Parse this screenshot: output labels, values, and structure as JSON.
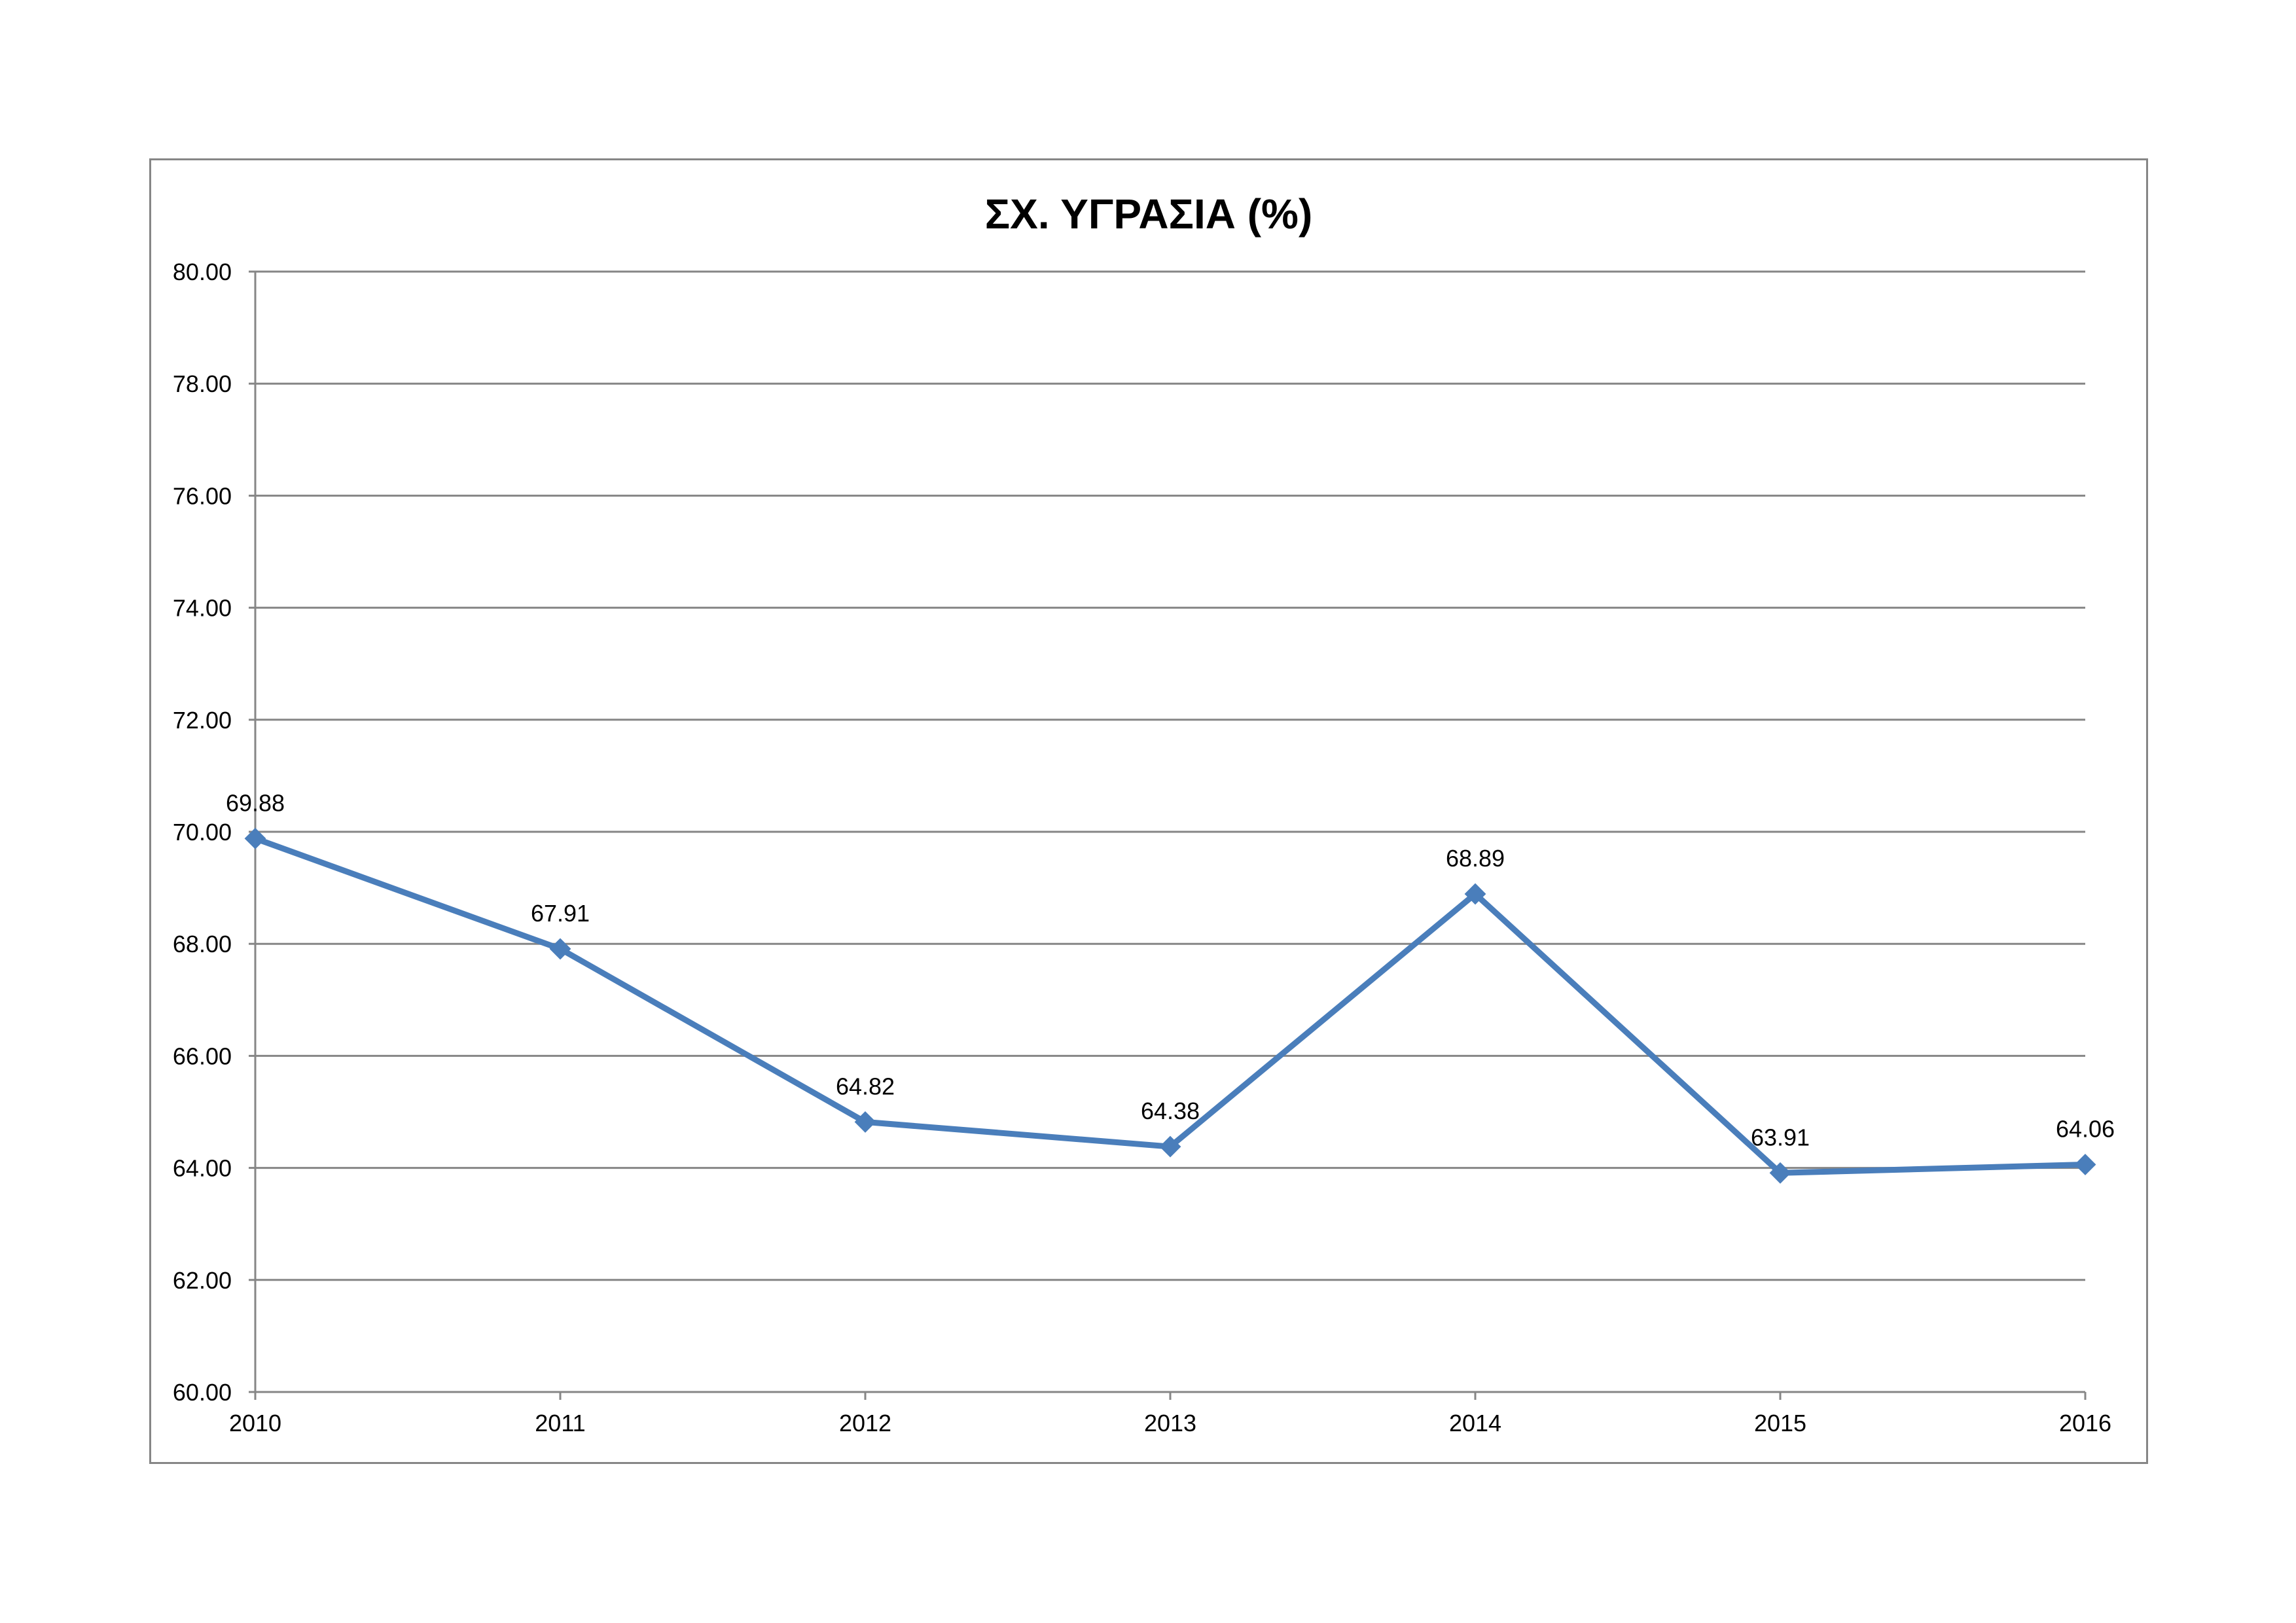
{
  "chart_data": {
    "type": "line",
    "title": "ΣΧ. ΥΓΡΑΣΙΑ (%)",
    "xlabel": "",
    "ylabel": "",
    "categories": [
      "2010",
      "2011",
      "2012",
      "2013",
      "2014",
      "2015",
      "2016"
    ],
    "series": [
      {
        "values": [
          69.88,
          67.91,
          64.82,
          64.38,
          68.89,
          63.91,
          64.06
        ],
        "data_labels": [
          "69.88",
          "67.91",
          "64.82",
          "64.38",
          "68.89",
          "63.91",
          "64.06"
        ],
        "color": "#4a7ebb",
        "marker": "diamond"
      }
    ],
    "ylim": [
      60,
      80
    ],
    "yticks": [
      "60.00",
      "62.00",
      "64.00",
      "66.00",
      "68.00",
      "70.00",
      "72.00",
      "74.00",
      "76.00",
      "78.00",
      "80.00"
    ],
    "grid": true,
    "legend": "none",
    "colors": {
      "line": "#4a7ebb",
      "grid": "#868686",
      "frame": "#868686",
      "background": "#ffffff"
    }
  }
}
